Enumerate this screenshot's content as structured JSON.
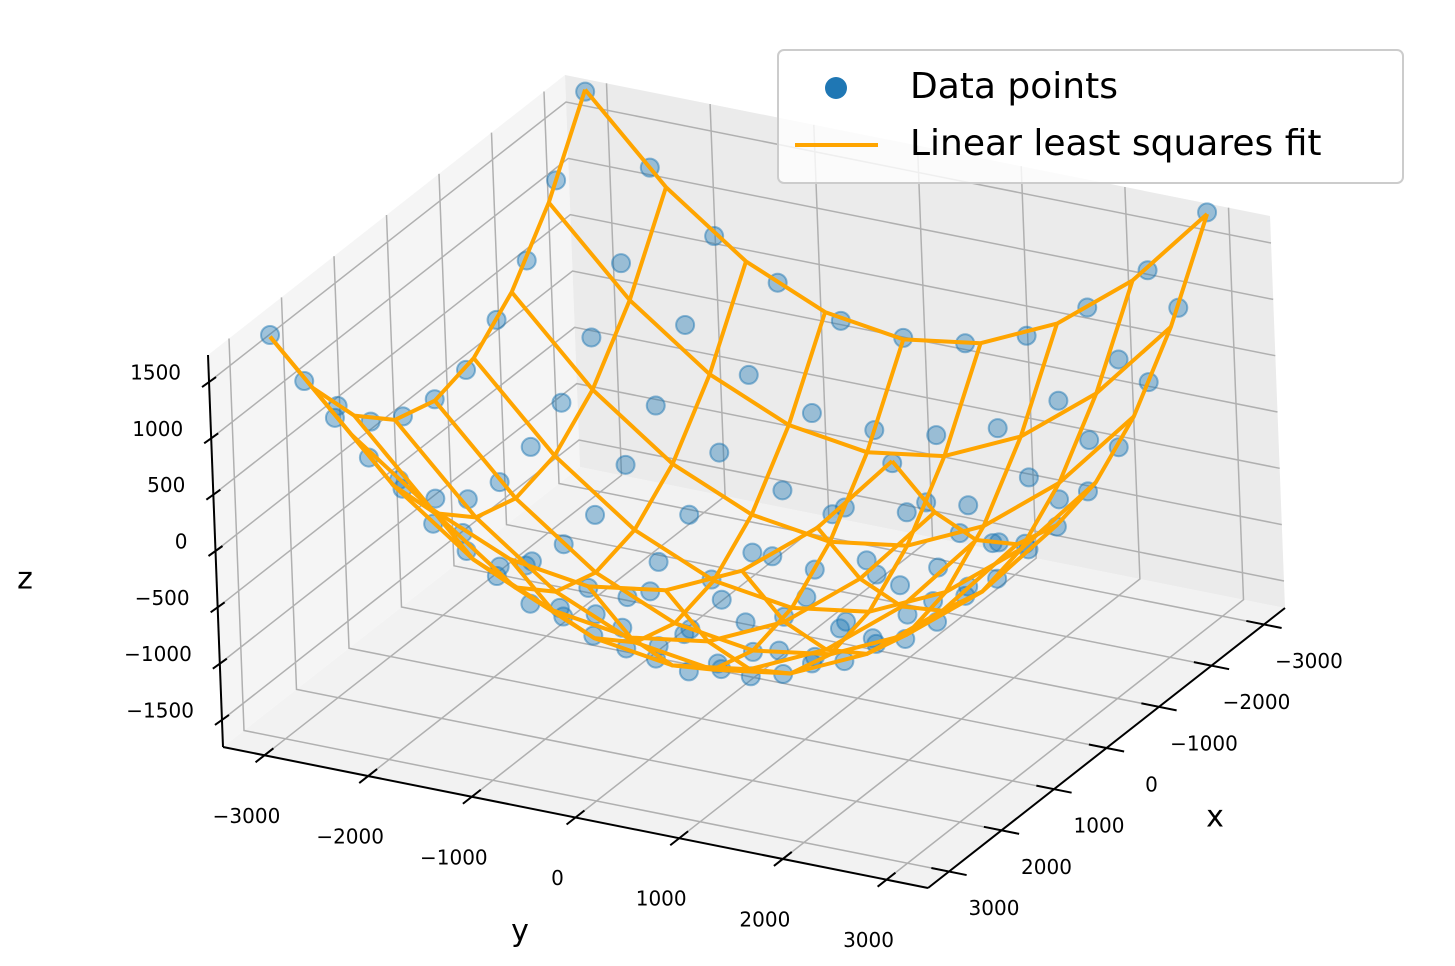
{
  "chart_data": {
    "type": "3d",
    "xlabel": "x",
    "ylabel": "y",
    "zlabel": "z",
    "xlim": [
      -3400,
      3400
    ],
    "ylim": [
      -3400,
      3400
    ],
    "zlim": [
      -1740,
      1740
    ],
    "xticks": [
      {
        "value": -3000,
        "label": "−3000"
      },
      {
        "value": -2000,
        "label": "−2000"
      },
      {
        "value": -1000,
        "label": "−1000"
      },
      0,
      1000,
      2000,
      3000
    ],
    "yticks": [
      {
        "value": -3000,
        "label": "−3000"
      },
      {
        "value": -2000,
        "label": "−2000"
      },
      {
        "value": -1000,
        "label": "−1000"
      },
      0,
      1000,
      2000,
      3000
    ],
    "zticks": [
      {
        "value": -1500,
        "label": "−1500"
      },
      {
        "value": -1000,
        "label": "−1000"
      },
      {
        "value": -500,
        "label": "−500"
      },
      0,
      500,
      1000,
      1500
    ],
    "grid": true,
    "legend": "upper right",
    "series": [
      {
        "name": "Data points",
        "type": "scatter",
        "color": "#1f77b4",
        "x": [
          -3000,
          -2400,
          -1800,
          -1200,
          -600,
          0,
          600,
          1200,
          1800,
          2400,
          3000
        ],
        "y": [
          -3000,
          -2400,
          -1800,
          -1200,
          -600,
          0,
          600,
          1200,
          1800,
          2400,
          3000
        ],
        "z": [
          [
            1812,
            1248,
            751,
            447,
            219,
            178,
            241,
            418,
            779,
            1220,
            1845
          ],
          [
            1244,
            619,
            181,
            -152,
            -380,
            -421,
            -355,
            -183,
            171,
            648,
            1217
          ],
          [
            752,
            179,
            -315,
            -622,
            -847,
            -889,
            -821,
            -648,
            -290,
            152,
            777
          ],
          [
            444,
            -181,
            -622,
            -955,
            -1180,
            -1221,
            -1154,
            -981,
            -648,
            -155,
            418
          ],
          [
            219,
            -354,
            -847,
            -1154,
            -1379,
            -1420,
            -1353,
            -1180,
            -821,
            -380,
            245
          ],
          [
            178,
            -447,
            -888,
            -1247,
            -1420,
            -1513,
            -1446,
            -1221,
            -914,
            -421,
            152
          ],
          [
            245,
            -380,
            -821,
            -1180,
            -1353,
            -1446,
            -1379,
            -1154,
            -847,
            -354,
            219
          ],
          [
            418,
            -155,
            -648,
            -981,
            -1154,
            -1247,
            -1180,
            -955,
            -622,
            -181,
            444
          ],
          [
            777,
            152,
            -290,
            -648,
            -821,
            -914,
            -847,
            -622,
            -315,
            179,
            752
          ],
          [
            1217,
            648,
            171,
            -183,
            -355,
            -421,
            -367,
            -152,
            181,
            619,
            1244
          ],
          [
            1845,
            1220,
            779,
            418,
            241,
            152,
            232,
            447,
            764,
            1248,
            1812
          ]
        ]
      },
      {
        "name": "Linear least squares fit",
        "type": "wireframe",
        "color": "#ffa500",
        "x": [
          -3000,
          -2250,
          -1500,
          -750,
          0,
          750,
          1500,
          2250,
          3000
        ],
        "y": [
          -3000,
          -2250,
          -1500,
          -750,
          0,
          750,
          1500,
          2250,
          3000
        ],
        "z": [
          [
            1830,
            1102,
            581,
            269,
            165,
            269,
            581,
            1102,
            1830
          ],
          [
            1102,
            374,
            -147,
            -459,
            -563,
            -459,
            -147,
            374,
            1102
          ],
          [
            581,
            -147,
            -668,
            -980,
            -1084,
            -980,
            -668,
            -147,
            581
          ],
          [
            269,
            -459,
            -980,
            -1292,
            -1396,
            -1292,
            -980,
            -459,
            269
          ],
          [
            165,
            -563,
            -1084,
            -1396,
            -1500,
            -1396,
            -1084,
            -563,
            165
          ],
          [
            269,
            -459,
            -980,
            -1292,
            -1396,
            -1292,
            -980,
            -459,
            269
          ],
          [
            581,
            -147,
            -668,
            -980,
            -1084,
            -980,
            -668,
            -147,
            581
          ],
          [
            1102,
            374,
            -147,
            -459,
            -563,
            -459,
            -147,
            374,
            1102
          ],
          [
            1830,
            1102,
            581,
            269,
            165,
            269,
            581,
            1102,
            1830
          ]
        ]
      }
    ]
  }
}
